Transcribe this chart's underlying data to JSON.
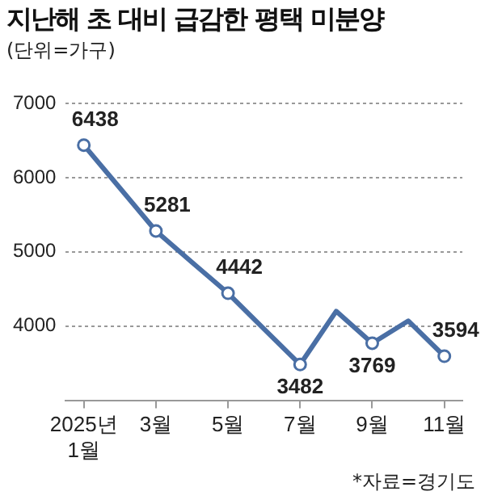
{
  "chart_data": {
    "type": "line",
    "title": "지난해 초 대비 급감한 평택 미분양",
    "subtitle": "(단위=가구)",
    "categories": [
      "2025년\n1월",
      null,
      "3월",
      null,
      "5월",
      null,
      "7월",
      null,
      "9월",
      null,
      "11월"
    ],
    "series": [
      {
        "color": "#4a6fa5",
        "values": [
          6438,
          5860,
          5281,
          4860,
          4442,
          3960,
          3482,
          4200,
          3769,
          4070,
          3594
        ],
        "value_labels": [
          "6438",
          null,
          "5281",
          null,
          "4442",
          null,
          "3482",
          null,
          "3769",
          null,
          "3594"
        ]
      }
    ],
    "ylim": [
      3000,
      7000
    ],
    "yticks": [
      4000,
      5000,
      6000,
      7000
    ],
    "grid": "y",
    "marker": "circle",
    "line_style": "solid",
    "legend": false,
    "annotations": [
      "*자료=경기도"
    ]
  }
}
